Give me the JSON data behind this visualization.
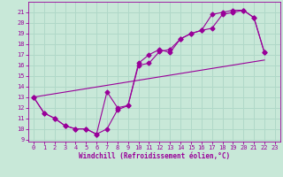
{
  "title": "",
  "xlabel": "Windchill (Refroidissement éolien,°C)",
  "ylabel": "",
  "bg_color": "#c8e8d8",
  "line_color": "#990099",
  "grid_color": "#b0d8c8",
  "xlim": [
    -0.5,
    23.5
  ],
  "ylim": [
    8.8,
    22.0
  ],
  "xticks": [
    0,
    1,
    2,
    3,
    4,
    5,
    6,
    7,
    8,
    9,
    10,
    11,
    12,
    13,
    14,
    15,
    16,
    17,
    18,
    19,
    20,
    21,
    22,
    23
  ],
  "yticks": [
    9,
    10,
    11,
    12,
    13,
    14,
    15,
    16,
    17,
    18,
    19,
    20,
    21
  ],
  "line1_x": [
    0,
    1,
    2,
    3,
    4,
    5,
    6,
    7,
    8,
    9,
    10,
    11,
    12,
    13,
    14,
    15,
    16,
    17,
    18,
    19,
    20,
    21,
    22
  ],
  "line1_y": [
    13,
    11.5,
    11,
    10.3,
    10,
    10,
    9.5,
    13.5,
    12.0,
    12.2,
    16.2,
    17.0,
    17.5,
    17.2,
    18.5,
    19.0,
    19.3,
    19.5,
    20.8,
    21.0,
    21.2,
    20.5,
    17.2
  ],
  "line2_x": [
    0,
    1,
    2,
    3,
    4,
    5,
    6,
    7,
    8,
    9,
    10,
    11,
    12,
    13,
    14,
    15,
    16,
    17,
    18,
    19,
    20,
    21,
    22
  ],
  "line2_y": [
    13,
    11.5,
    11,
    10.3,
    10,
    10,
    9.5,
    10.0,
    11.8,
    12.2,
    16.0,
    16.2,
    17.3,
    17.5,
    18.5,
    19.0,
    19.3,
    20.8,
    21.0,
    21.2,
    21.2,
    20.5,
    17.2
  ],
  "line3_x": [
    0,
    22
  ],
  "line3_y": [
    13,
    16.5
  ],
  "marker": "D",
  "markersize": 2.5,
  "linewidth": 0.8
}
